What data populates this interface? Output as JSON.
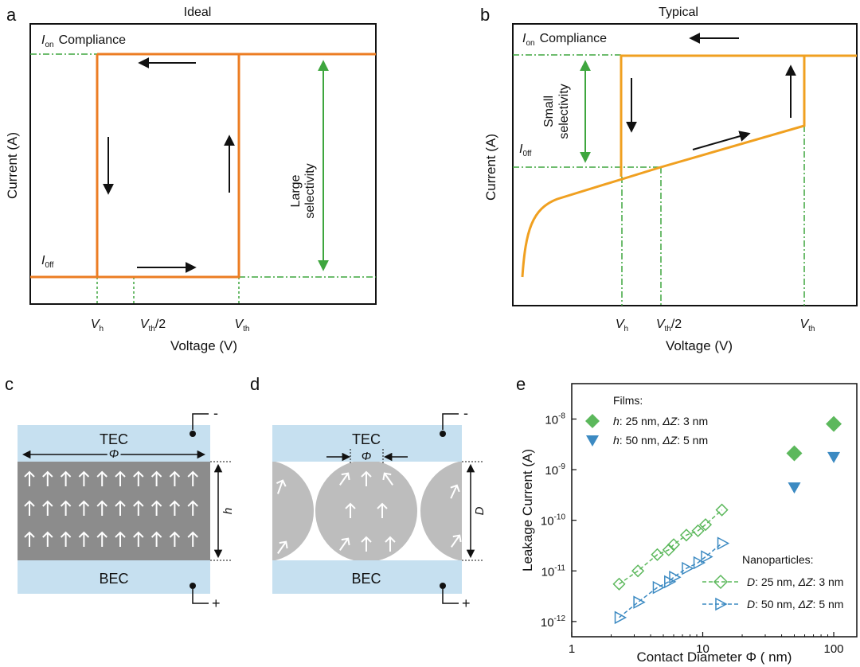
{
  "colors": {
    "orange": "#ec7d23",
    "orange_b": "#f0a020",
    "green": "#3ea63e",
    "green_marker": "#5cb85c",
    "blue_marker": "#3c8ac2",
    "electrode": "#c6e0f0",
    "film": "#8c8c8c",
    "particle": "#bdbdbd",
    "arrow_white": "#ffffff"
  },
  "panels": {
    "a": {
      "label": "a",
      "title": "Ideal",
      "ylabel": "Current (A)",
      "xlabel": "Voltage (V)",
      "ion": "I",
      "ion_sub": "on",
      "compliance": "Compliance",
      "ioff": "I",
      "ioff_sub": "0ff",
      "vh": "V",
      "vh_sub": "h",
      "vth2": "V",
      "vth2_sub": "th",
      "vth2_suffix": "/2",
      "vth": "V",
      "vth_sub": "th",
      "annotation_line1": "Large",
      "annotation_line2": "selectivity"
    },
    "b": {
      "label": "b",
      "title": "Typical",
      "ylabel": "Current (A)",
      "xlabel": "Voltage (V)",
      "ion": "I",
      "ion_sub": "on",
      "compliance": "Compliance",
      "ioff": "I",
      "ioff_sub": "0ff",
      "vh": "V",
      "vh_sub": "h",
      "vth2": "V",
      "vth2_sub": "th",
      "vth2_suffix": "/2",
      "vth": "V",
      "vth_sub": "th",
      "annotation_line1": "Small",
      "annotation_line2": "selectivity"
    },
    "c": {
      "label": "c",
      "tec": "TEC",
      "bec": "BEC",
      "phi": "Φ",
      "h": "h",
      "minus": "-",
      "plus": "+"
    },
    "d": {
      "label": "d",
      "tec": "TEC",
      "bec": "BEC",
      "phi": "Φ",
      "D": "D",
      "minus": "-",
      "plus": "+"
    },
    "e": {
      "label": "e",
      "legend_films_title": "Films:",
      "legend_films": [
        {
          "var": "h",
          "text": ": 25 nm, ",
          "dz": "ΔZ",
          "tail": ": 3 nm"
        },
        {
          "var": "h",
          "text": ": 50 nm, ",
          "dz": "ΔZ",
          "tail": ": 5 nm"
        }
      ],
      "legend_np_title": "Nanoparticles:",
      "legend_np": [
        {
          "var": "D",
          "text": ": 25 nm, ",
          "dz": "ΔZ",
          "tail": ": 3 nm"
        },
        {
          "var": "D",
          "text": ": 50 nm, ",
          "dz": "ΔZ",
          "tail": ": 5 nm"
        }
      ]
    }
  },
  "chart_data": {
    "type": "scatter",
    "title": "",
    "xlabel": "Contact Diameter Φ ( nm)",
    "ylabel": "Leakage Current (A)",
    "xscale": "log",
    "yscale": "log",
    "xlim": [
      1,
      150
    ],
    "ylim": [
      5e-13,
      5e-08
    ],
    "x_ticks": [
      1,
      10,
      100
    ],
    "x_tick_labels": [
      "1",
      "10",
      "100"
    ],
    "y_ticks": [
      1e-12,
      1e-11,
      1e-10,
      1e-09,
      1e-08
    ],
    "y_tick_mantissa": "10",
    "y_tick_exponents": [
      "-12",
      "-11",
      "-10",
      "-9",
      "-8"
    ],
    "series": [
      {
        "name": "Films h: 25 nm, ΔZ: 3 nm",
        "marker": "diamond",
        "x": [
          50,
          100
        ],
        "y": [
          2.1e-09,
          8e-09
        ]
      },
      {
        "name": "Films h: 50 nm, ΔZ: 5 nm",
        "marker": "triangle-down",
        "x": [
          50,
          100
        ],
        "y": [
          4.5e-10,
          1.8e-09
        ]
      },
      {
        "name": "Nanoparticles D: 25 nm, ΔZ: 3 nm",
        "marker": "diamond-open",
        "x": [
          2.3,
          3.2,
          4.5,
          5.5,
          6.0,
          7.5,
          9.2,
          10.5,
          14.0
        ],
        "y": [
          5.5e-12,
          1e-11,
          2.1e-11,
          2.6e-11,
          3.3e-11,
          5.1e-11,
          6.2e-11,
          8.2e-11,
          1.6e-10
        ]
      },
      {
        "name": "Nanoparticles D: 50 nm, ΔZ: 5 nm",
        "marker": "triangle-right-open",
        "x": [
          2.3,
          3.2,
          4.5,
          5.5,
          6.0,
          7.5,
          9.2,
          10.5,
          14.0
        ],
        "y": [
          1.2e-12,
          2.4e-12,
          4.7e-12,
          6.1e-12,
          7.5e-12,
          1.12e-11,
          1.45e-11,
          1.9e-11,
          3.5e-11
        ]
      }
    ]
  }
}
